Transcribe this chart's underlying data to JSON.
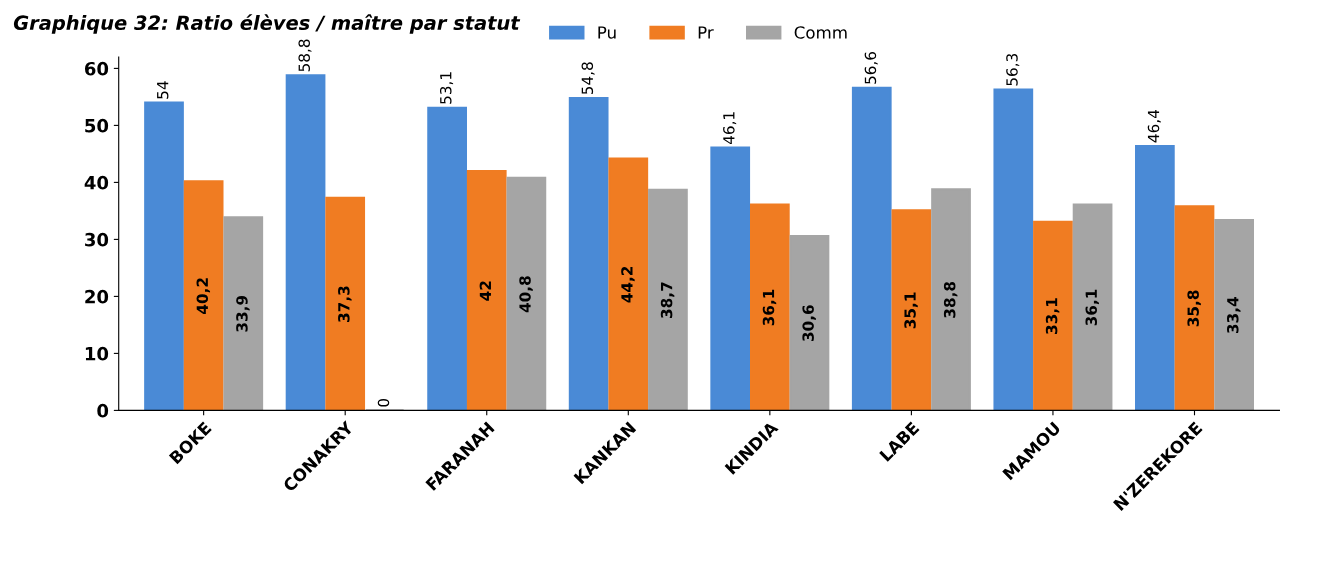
{
  "chart_data": {
    "type": "bar",
    "title": "Graphique 32: Ratio élèves / maître par statut",
    "categories": [
      "BOKE",
      "CONAKRY",
      "FARANAH",
      "KANKAN",
      "KINDIA",
      "LABE",
      "MAMOU",
      "N'ZEREKORE"
    ],
    "series": [
      {
        "name": "Pu",
        "color": "#4a8ad6",
        "values": [
          54,
          58.8,
          53.1,
          54.8,
          46.1,
          56.6,
          56.3,
          46.4
        ],
        "value_labels": [
          "54",
          "58,8",
          "53,1",
          "54,8",
          "46,1",
          "56,6",
          "56,3",
          "46,4"
        ]
      },
      {
        "name": "Pr",
        "color": "#f07c22",
        "values": [
          40.2,
          37.3,
          42,
          44.2,
          36.1,
          35.1,
          33.1,
          35.8
        ],
        "value_labels": [
          "40,2",
          "37,3",
          "42",
          "44,2",
          "36,1",
          "35,1",
          "33,1",
          "35,8"
        ]
      },
      {
        "name": "Comm",
        "color": "#a5a5a5",
        "values": [
          33.9,
          0,
          40.8,
          38.7,
          30.6,
          38.8,
          36.1,
          33.4
        ],
        "value_labels": [
          "33,9",
          "0",
          "40,8",
          "38,7",
          "30,6",
          "38,8",
          "36,1",
          "33,4"
        ]
      }
    ],
    "ylim": [
      0,
      62
    ],
    "yticks": [
      0,
      10,
      20,
      30,
      40,
      50,
      60
    ],
    "legend": "top",
    "grid": false
  }
}
